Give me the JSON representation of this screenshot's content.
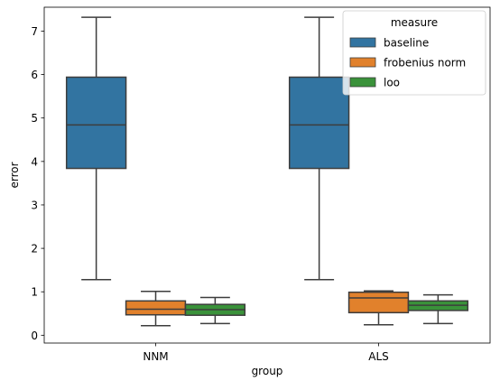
{
  "chart_data": {
    "type": "box",
    "xlabel": "group",
    "ylabel": "error",
    "ylim": [
      -0.18,
      7.55
    ],
    "yticks": [
      "0",
      "1",
      "2",
      "3",
      "4",
      "5",
      "6",
      "7"
    ],
    "categories": [
      "NNM",
      "ALS"
    ],
    "legend": {
      "title": "measure",
      "placement": "top-right"
    },
    "series": [
      {
        "name": "baseline",
        "color": "#3274a1",
        "boxes": [
          {
            "whisker_low": 1.28,
            "q1": 3.84,
            "median": 4.84,
            "q3": 5.94,
            "whisker_high": 7.32
          },
          {
            "whisker_low": 1.28,
            "q1": 3.84,
            "median": 4.84,
            "q3": 5.94,
            "whisker_high": 7.32
          }
        ]
      },
      {
        "name": "frobenius norm",
        "color": "#e1812c",
        "boxes": [
          {
            "whisker_low": 0.22,
            "q1": 0.47,
            "median": 0.6,
            "q3": 0.79,
            "whisker_high": 1.01
          },
          {
            "whisker_low": 0.24,
            "q1": 0.52,
            "median": 0.86,
            "q3": 0.99,
            "whisker_high": 1.02
          }
        ]
      },
      {
        "name": "loo",
        "color": "#3a923a",
        "boxes": [
          {
            "whisker_low": 0.27,
            "q1": 0.46,
            "median": 0.59,
            "q3": 0.71,
            "whisker_high": 0.87
          },
          {
            "whisker_low": 0.27,
            "q1": 0.57,
            "median": 0.69,
            "q3": 0.79,
            "whisker_high": 0.93
          }
        ]
      }
    ]
  }
}
